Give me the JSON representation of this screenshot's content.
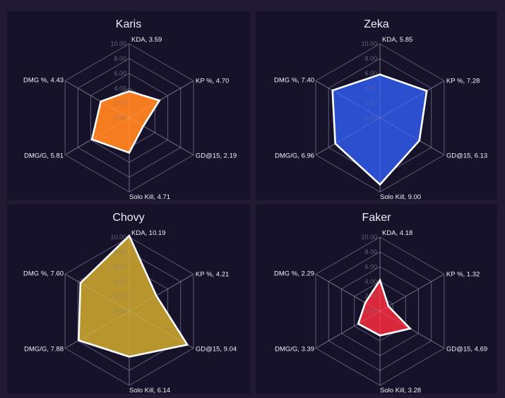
{
  "chart_data": [
    {
      "type": "radar",
      "title": "Karis",
      "axes": [
        "KDA",
        "KP %",
        "GD@15",
        "Solo Kill",
        "DMG/G",
        "DMG %"
      ],
      "values": [
        3.59,
        4.7,
        2.19,
        4.71,
        5.81,
        4.43
      ],
      "fill_color": "#f57c1f",
      "rlim": [
        0,
        10
      ],
      "ticks": [
        "0.00",
        "2.00",
        "4.00",
        "6.00",
        "8.00",
        "10.00"
      ]
    },
    {
      "type": "radar",
      "title": "Zeka",
      "axes": [
        "KDA",
        "KP %",
        "GD@15",
        "Solo Kill",
        "DMG/G",
        "DMG %"
      ],
      "values": [
        5.85,
        7.28,
        6.13,
        9.0,
        6.96,
        7.4
      ],
      "fill_color": "#2b4fcf",
      "rlim": [
        0,
        10
      ],
      "ticks": [
        "0.00",
        "2.00",
        "4.00",
        "6.00",
        "8.00",
        "10.00"
      ]
    },
    {
      "type": "radar",
      "title": "Chovy",
      "axes": [
        "KDA",
        "KP %",
        "GD@15",
        "Solo Kill",
        "DMG/G",
        "DMG %"
      ],
      "values": [
        10.19,
        4.21,
        9.04,
        6.14,
        7.88,
        7.6
      ],
      "fill_color": "#b8962d",
      "rlim": [
        0,
        10
      ],
      "ticks": [
        "0.00",
        "2.00",
        "4.00",
        "6.00",
        "8.00",
        "10.00"
      ]
    },
    {
      "type": "radar",
      "title": "Faker",
      "axes": [
        "KDA",
        "KP %",
        "GD@15",
        "Solo Kill",
        "DMG/G",
        "DMG %"
      ],
      "values": [
        4.18,
        1.32,
        4.69,
        3.28,
        3.39,
        2.29
      ],
      "fill_color": "#d9283b",
      "rlim": [
        0,
        10
      ],
      "ticks": [
        "0.00",
        "2.00",
        "4.00",
        "6.00",
        "8.00",
        "10.00"
      ]
    }
  ],
  "panels": [
    {
      "title": "Karis",
      "labels": [
        "KDA, 3.59",
        "KP %, 4.70",
        "GD@15, 2.19",
        "Solo Kill, 4.71",
        "DMG/G, 5.81",
        "DMG %, 4.43"
      ]
    },
    {
      "title": "Zeka",
      "labels": [
        "KDA, 5.85",
        "KP %, 7.28",
        "GD@15, 6.13",
        "Solo Kill, 9.00",
        "DMG/G, 6.96",
        "DMG %, 7.40"
      ]
    },
    {
      "title": "Chovy",
      "labels": [
        "KDA, 10.19",
        "KP %, 4.21",
        "GD@15, 9.04",
        "Solo Kill, 6.14",
        "DMG/G, 7.88",
        "DMG %, 7.60"
      ]
    },
    {
      "title": "Faker",
      "labels": [
        "KDA, 4.18",
        "KP %, 1.32",
        "GD@15, 4.69",
        "Solo Kill, 3.28",
        "DMG/G, 3.39",
        "DMG %, 2.29"
      ]
    }
  ],
  "style": {
    "background": "#221a34",
    "panel_background": "#15122a",
    "grid_color": "#5e5a78",
    "outline_color": "#ffffff"
  }
}
